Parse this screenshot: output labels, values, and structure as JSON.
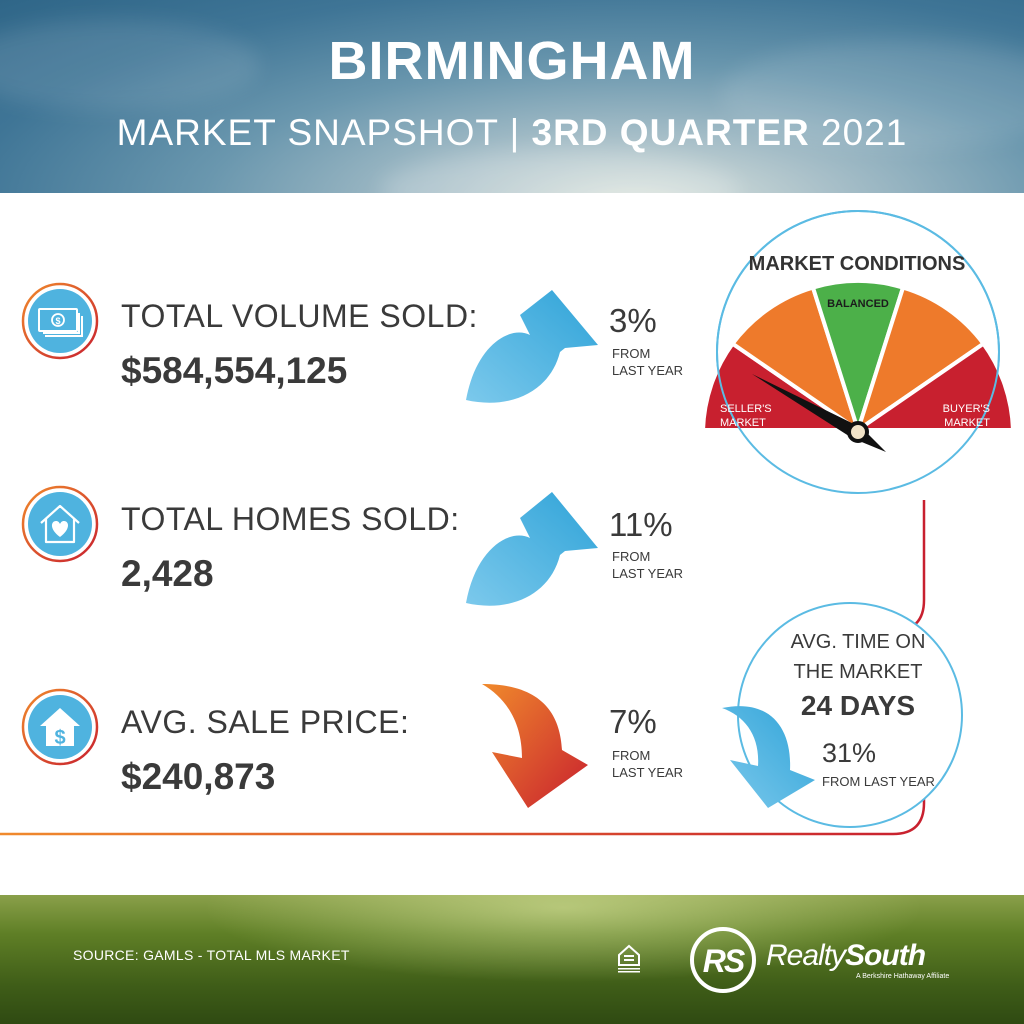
{
  "header": {
    "title": "BIRMINGHAM",
    "subtitle_prefix": "MARKET SNAPSHOT | ",
    "subtitle_bold": "3RD QUARTER",
    "subtitle_suffix": " 2021"
  },
  "rows": [
    {
      "label": "TOTAL VOLUME SOLD:",
      "value": "$584,554,125",
      "change_pct": "3%",
      "change_direction": "up",
      "change_note_line1": "FROM",
      "change_note_line2": "LAST YEAR",
      "icon": "money-icon"
    },
    {
      "label": "TOTAL HOMES SOLD:",
      "value": "2,428",
      "change_pct": "11%",
      "change_direction": "up",
      "change_note_line1": "FROM",
      "change_note_line2": "LAST YEAR",
      "icon": "home-heart-icon"
    },
    {
      "label": "AVG. SALE PRICE:",
      "value": "$240,873",
      "change_pct": "7%",
      "change_direction": "down",
      "change_note_line1": "FROM",
      "change_note_line2": "LAST YEAR",
      "icon": "home-dollar-icon"
    }
  ],
  "gauge": {
    "title": "MARKET CONDITIONS",
    "left_label_line1": "SELLER'S",
    "left_label_line2": "MARKET",
    "center_label": "BALANCED",
    "right_label_line1": "BUYER'S",
    "right_label_line2": "MARKET",
    "needle_position": "seller's market",
    "colors": {
      "red": "#c8202f",
      "orange": "#ee7a2b",
      "green": "#4cb049"
    }
  },
  "avg_time": {
    "title_line1": "AVG. TIME ON",
    "title_line2": "THE MARKET",
    "days": "24 DAYS",
    "change_pct": "31%",
    "change_direction": "down",
    "change_note": "FROM LAST YEAR"
  },
  "footer": {
    "source": "SOURCE: GAMLS - TOTAL MLS MARKET",
    "brand_initials": "RS",
    "brand_name_light": "Realty",
    "brand_name_bold": "South",
    "brand_tagline": "A Berkshire Hathaway Affiliate",
    "equal_housing_text": "EQUAL HOUSING OPPORTUNITY"
  },
  "colors": {
    "accent_blue": "#4fb3df",
    "line_orange": "#e8662f",
    "line_red": "#c8202f",
    "text_dark": "#3a3a3a"
  }
}
